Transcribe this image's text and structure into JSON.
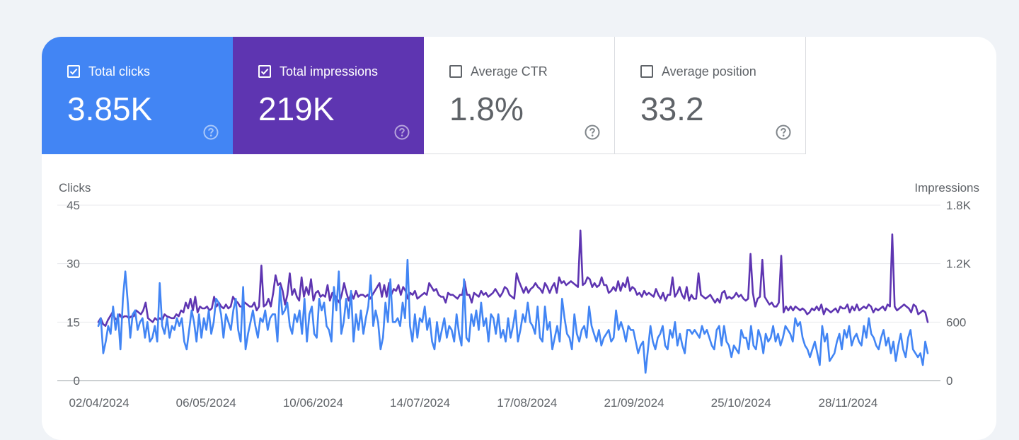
{
  "metrics": {
    "total_clicks": {
      "label": "Total clicks",
      "value": "3.85K",
      "checked": true,
      "color": "#4285f4"
    },
    "total_impressions": {
      "label": "Total impressions",
      "value": "219K",
      "checked": true,
      "color": "#5e35b1"
    },
    "average_ctr": {
      "label": "Average CTR",
      "value": "1.8%",
      "checked": false
    },
    "average_position": {
      "label": "Average position",
      "value": "33.2",
      "checked": false
    }
  },
  "icons": {
    "checkbox_checked": "checkbox-checked-icon",
    "checkbox_empty": "checkbox-empty-icon",
    "help": "help-icon"
  },
  "chart_data": {
    "type": "line",
    "left_axis_label": "Clicks",
    "right_axis_label": "Impressions",
    "left_ticks": [
      "45",
      "30",
      "15",
      "0"
    ],
    "right_ticks": [
      "1.8K",
      "1.2K",
      "600",
      "0"
    ],
    "ylim_left": [
      0,
      45
    ],
    "ylim_right": [
      0,
      1800
    ],
    "x_tick_labels": [
      "02/04/2024",
      "06/05/2024",
      "10/06/2024",
      "14/07/2024",
      "17/08/2024",
      "21/09/2024",
      "25/10/2024",
      "28/11/2024"
    ],
    "x_range": [
      "02/04/2024",
      "30/12/2024"
    ],
    "grid": true,
    "series": [
      {
        "name": "Clicks",
        "axis": "left",
        "color": "#4285f4",
        "values": [
          14,
          16,
          7,
          10,
          14,
          12,
          19,
          13,
          17,
          8,
          21,
          28,
          20,
          11,
          17,
          18,
          13,
          15,
          16,
          11,
          15,
          10,
          11,
          14,
          10,
          25,
          14,
          12,
          16,
          11,
          14,
          13,
          16,
          14,
          16,
          10,
          8,
          13,
          18,
          15,
          10,
          17,
          11,
          16,
          13,
          18,
          12,
          15,
          21,
          20,
          17,
          11,
          17,
          15,
          13,
          18,
          21,
          13,
          10,
          24,
          8,
          12,
          15,
          18,
          14,
          11,
          16,
          15,
          18,
          13,
          16,
          17,
          17,
          10,
          24,
          17,
          18,
          20,
          14,
          12,
          17,
          15,
          18,
          12,
          21,
          10,
          17,
          19,
          12,
          11,
          21,
          18,
          20,
          14,
          13,
          10,
          24,
          18,
          28,
          12,
          15,
          21,
          16,
          23,
          10,
          17,
          13,
          18,
          12,
          16,
          19,
          27,
          14,
          18,
          15,
          8,
          11,
          20,
          15,
          26,
          15,
          15,
          16,
          14,
          20,
          16,
          31,
          14,
          10,
          17,
          11,
          16,
          15,
          19,
          13,
          16,
          10,
          8,
          15,
          10,
          13,
          16,
          11,
          14,
          13,
          10,
          17,
          12,
          9,
          26,
          11,
          10,
          17,
          14,
          18,
          13,
          20,
          14,
          16,
          10,
          17,
          16,
          12,
          17,
          11,
          13,
          10,
          16,
          11,
          14,
          18,
          10,
          13,
          17,
          15,
          20,
          15,
          14,
          12,
          19,
          11,
          10,
          19,
          13,
          15,
          8,
          11,
          14,
          10,
          21,
          16,
          12,
          11,
          8,
          17,
          12,
          10,
          13,
          14,
          11,
          19,
          14,
          12,
          10,
          13,
          9,
          11,
          12,
          13,
          10,
          11,
          18,
          13,
          15,
          13,
          10,
          14,
          13,
          13,
          10,
          7,
          9,
          10,
          2,
          8,
          14,
          10,
          8,
          11,
          12,
          14,
          9,
          8,
          13,
          11,
          15,
          9,
          12,
          9,
          7,
          13,
          13,
          12,
          13,
          12,
          11,
          14,
          12,
          13,
          11,
          9,
          8,
          13,
          14,
          9,
          14,
          10,
          9,
          6,
          9,
          8,
          7,
          13,
          11,
          11,
          8,
          14,
          9,
          8,
          13,
          11,
          7,
          12,
          10,
          11,
          14,
          10,
          12,
          9,
          11,
          14,
          13,
          12,
          10,
          16,
          14,
          15,
          11,
          9,
          8,
          6,
          8,
          10,
          7,
          4,
          14,
          10,
          12,
          5,
          6,
          7,
          10,
          12,
          8,
          13,
          11,
          14,
          9,
          11,
          12,
          10,
          9,
          14,
          11,
          16,
          12,
          11,
          9,
          8,
          11,
          13,
          9,
          11,
          7,
          10,
          5,
          9,
          12,
          8,
          6,
          11,
          13,
          8,
          7,
          6,
          7,
          4,
          10,
          7
        ]
      },
      {
        "name": "Impressions",
        "axis": "right",
        "color": "#5e35b1",
        "values": [
          600,
          640,
          580,
          560,
          620,
          660,
          700,
          640,
          620,
          680,
          640,
          660,
          660,
          640,
          660,
          660,
          720,
          700,
          680,
          720,
          800,
          640,
          620,
          600,
          640,
          620,
          640,
          620,
          680,
          660,
          650,
          640,
          640,
          680,
          660,
          720,
          700,
          800,
          740,
          840,
          720,
          860,
          700,
          760,
          740,
          740,
          760,
          720,
          740,
          860,
          760,
          800,
          760,
          740,
          780,
          740,
          760,
          860,
          820,
          800,
          760,
          760,
          800,
          780,
          760,
          760,
          800,
          720,
          760,
          1180,
          760,
          780,
          840,
          760,
          900,
          1080,
          980,
          1000,
          920,
          780,
          880,
          1100,
          880,
          940,
          860,
          820,
          1060,
          860,
          960,
          880,
          1040,
          820,
          900,
          920,
          860,
          880,
          860,
          980,
          820,
          900,
          880,
          840,
          800,
          880,
          1000,
          900,
          820,
          900,
          840,
          920,
          860,
          880,
          880,
          860,
          880,
          840,
          880,
          920,
          960,
          1000,
          860,
          980,
          860,
          1000,
          880,
          940,
          920,
          980,
          880,
          960,
          920,
          840,
          900,
          880,
          920,
          840,
          860,
          880,
          900,
          880,
          1000,
          960,
          920,
          940,
          880,
          860,
          860,
          800,
          900,
          880,
          880,
          860,
          840,
          880,
          880,
          1020,
          880,
          880,
          800,
          900,
          880,
          860,
          920,
          880,
          900,
          860,
          880,
          900,
          940,
          900,
          860,
          900,
          960,
          940,
          880,
          860,
          840,
          1100,
          1020,
          960,
          900,
          960,
          900,
          940,
          960,
          1000,
          960,
          940,
          900,
          1000,
          960,
          900,
          960,
          1000,
          900,
          1060,
          1000,
          1020,
          980,
          1000,
          1020,
          1000,
          980,
          960,
          1540,
          980,
          1000,
          1060,
          1040,
          960,
          1000,
          960,
          980,
          1060,
          980,
          980,
          900,
          920,
          960,
          920,
          1020,
          920,
          1000,
          960,
          1060,
          920,
          960,
          940,
          880,
          900,
          860,
          920,
          880,
          900,
          880,
          860,
          940,
          880,
          840,
          900,
          820,
          880,
          880,
          1060,
          860,
          900,
          960,
          880,
          840,
          960,
          820,
          880,
          840,
          840,
          1100,
          880,
          860,
          840,
          860,
          880,
          840,
          800,
          840,
          800,
          900,
          920,
          840,
          860,
          840,
          860,
          900,
          860,
          880,
          840,
          820,
          840,
          1300,
          900,
          760,
          840,
          860,
          1240,
          860,
          820,
          780,
          800,
          760,
          760,
          800,
          1280,
          700,
          760,
          720,
          760,
          720,
          760,
          740,
          720,
          740,
          720,
          680,
          700,
          740,
          720,
          760,
          720,
          780,
          680,
          740,
          720,
          700,
          720,
          740,
          700,
          760,
          740,
          740,
          780,
          700,
          760,
          720,
          780,
          720,
          740,
          760,
          740,
          780,
          760,
          700,
          740,
          720,
          740,
          760,
          720,
          780,
          760,
          1500,
          760,
          720,
          740,
          760,
          780,
          760,
          740,
          700,
          780,
          760,
          680,
          700,
          720,
          700,
          600
        ]
      }
    ]
  }
}
